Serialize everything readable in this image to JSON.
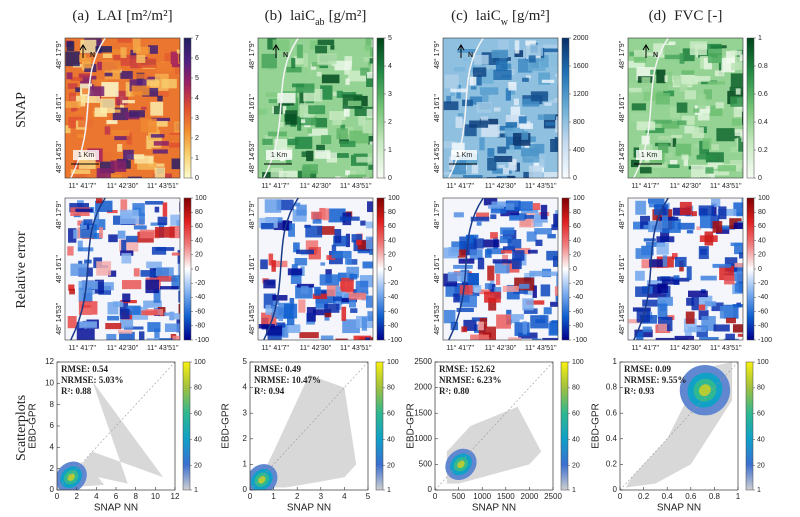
{
  "row_labels": [
    "SNAP",
    "Relative error",
    "Scatterplots"
  ],
  "lat_labels": [
    "48° 17'9''",
    "48° 16'1''",
    "48° 14'53''"
  ],
  "lon_labels": [
    "11° 41'7''",
    "11° 42'30''",
    "11° 43'51''"
  ],
  "scale_label": "1 Km",
  "north_label": "N",
  "x_axis_label": "SNAP NN",
  "y_axis_label": "EBD-GPR",
  "error_colorbar": {
    "lim": [
      -100,
      100
    ],
    "ticks": [
      -100,
      -80,
      -60,
      -40,
      -20,
      0,
      20,
      40,
      60,
      80,
      100
    ],
    "colors": [
      "#00008b",
      "#1060d0",
      "#80b0f0",
      "#ffffff",
      "#f08080",
      "#e02020",
      "#800000"
    ]
  },
  "density_colorbar": {
    "lim": [
      1,
      100
    ],
    "ticks": [
      1,
      20,
      40,
      60,
      80,
      100
    ],
    "colors": [
      "#d0d0d0",
      "#3a6fd0",
      "#10a0c8",
      "#30b890",
      "#a0c040",
      "#f8f010"
    ]
  },
  "columns": [
    {
      "label": "(a)",
      "main": "LAI",
      "unit": "[m²/m²]",
      "snap_colorbar": {
        "lim": [
          0,
          7
        ],
        "ticks": [
          0,
          1,
          2,
          3,
          4,
          5,
          6,
          7
        ],
        "colors": [
          "#fdfdd0",
          "#f8d070",
          "#f29030",
          "#e05030",
          "#a02060",
          "#502080",
          "#202060"
        ]
      },
      "scatter": {
        "xlim": [
          0,
          12
        ],
        "xticks": [
          0,
          2,
          4,
          6,
          8,
          10,
          12
        ],
        "ylim": [
          0,
          12
        ],
        "yticks": [
          0,
          2,
          4,
          6,
          8,
          10,
          12
        ],
        "stats": [
          "RMSE: 0.54",
          "NRMSE: 5.03%",
          "R²: 0.88"
        ]
      }
    },
    {
      "label": "(b)",
      "main": "laiC",
      "sub": "ab",
      "unit": "[g/m²]",
      "snap_colorbar": {
        "lim": [
          0,
          5
        ],
        "ticks": [
          0,
          1,
          2,
          3,
          4,
          5
        ],
        "colors": [
          "#f7fcf5",
          "#c7e9c0",
          "#74c476",
          "#238b45",
          "#00441b"
        ]
      },
      "scatter": {
        "xlim": [
          0,
          5
        ],
        "xticks": [
          0,
          1,
          2,
          3,
          4,
          5
        ],
        "ylim": [
          0,
          5
        ],
        "yticks": [
          0,
          1,
          2,
          3,
          4,
          5
        ],
        "stats": [
          "RMSE: 0.49",
          "NRMSE: 10.47%",
          "R²: 0.94"
        ]
      }
    },
    {
      "label": "(c)",
      "main": "laiC",
      "sub": "w",
      "unit": "[g/m²]",
      "snap_colorbar": {
        "lim": [
          0,
          2000
        ],
        "ticks": [
          0,
          400,
          800,
          1200,
          1600,
          2000
        ],
        "colors": [
          "#f7fbff",
          "#c6dbef",
          "#6baed6",
          "#2171b5",
          "#08306b"
        ]
      },
      "scatter": {
        "xlim": [
          0,
          2500
        ],
        "xticks": [
          0,
          500,
          1000,
          1500,
          2000,
          2500
        ],
        "ylim": [
          0,
          2500
        ],
        "yticks": [
          0,
          500,
          1000,
          1500,
          2000,
          2500
        ],
        "stats": [
          "RMSE: 152.62",
          "NRMSE: 6.23%",
          "R²: 0.80"
        ]
      }
    },
    {
      "label": "(d)",
      "main": "FVC",
      "unit": "[-]",
      "snap_colorbar": {
        "lim": [
          0,
          1
        ],
        "ticks": [
          0,
          0.2,
          0.4,
          0.6,
          0.8,
          1
        ],
        "colors": [
          "#f7fcf5",
          "#c7e9c0",
          "#74c476",
          "#238b45",
          "#00441b"
        ]
      },
      "scatter": {
        "xlim": [
          0,
          1
        ],
        "xticks": [
          0,
          0.2,
          0.4,
          0.6,
          0.8,
          1
        ],
        "ylim": [
          0,
          1
        ],
        "yticks": [
          0,
          0.2,
          0.4,
          0.6,
          0.8,
          1
        ],
        "stats": [
          "RMSE: 0.09",
          "NRMSE: 9.55%",
          "R²: 0.93"
        ]
      }
    }
  ]
}
